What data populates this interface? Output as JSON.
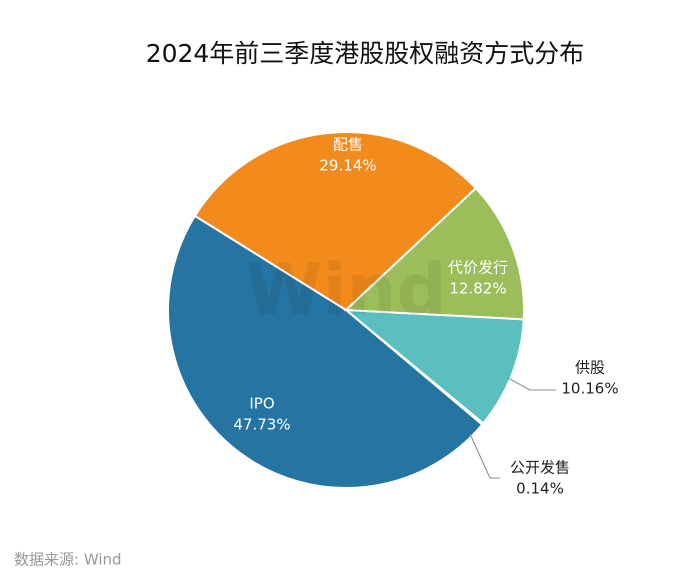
{
  "chart_data": {
    "type": "pie",
    "title": "2024年前三季度港股股权融资方式分布",
    "categories": [
      "供股",
      "公开发售",
      "IPO",
      "配售",
      "代价发行"
    ],
    "values": [
      10.16,
      0.14,
      47.73,
      29.14,
      12.82
    ],
    "value_labels": [
      "10.16%",
      "0.14%",
      "47.73%",
      "29.14%",
      "12.82%"
    ],
    "colors": [
      "#5bbfc0",
      "#4a90c8",
      "#2574a1",
      "#f28a1c",
      "#9bbd5a"
    ],
    "watermark": "Wind",
    "source": "数据来源: Wind"
  }
}
